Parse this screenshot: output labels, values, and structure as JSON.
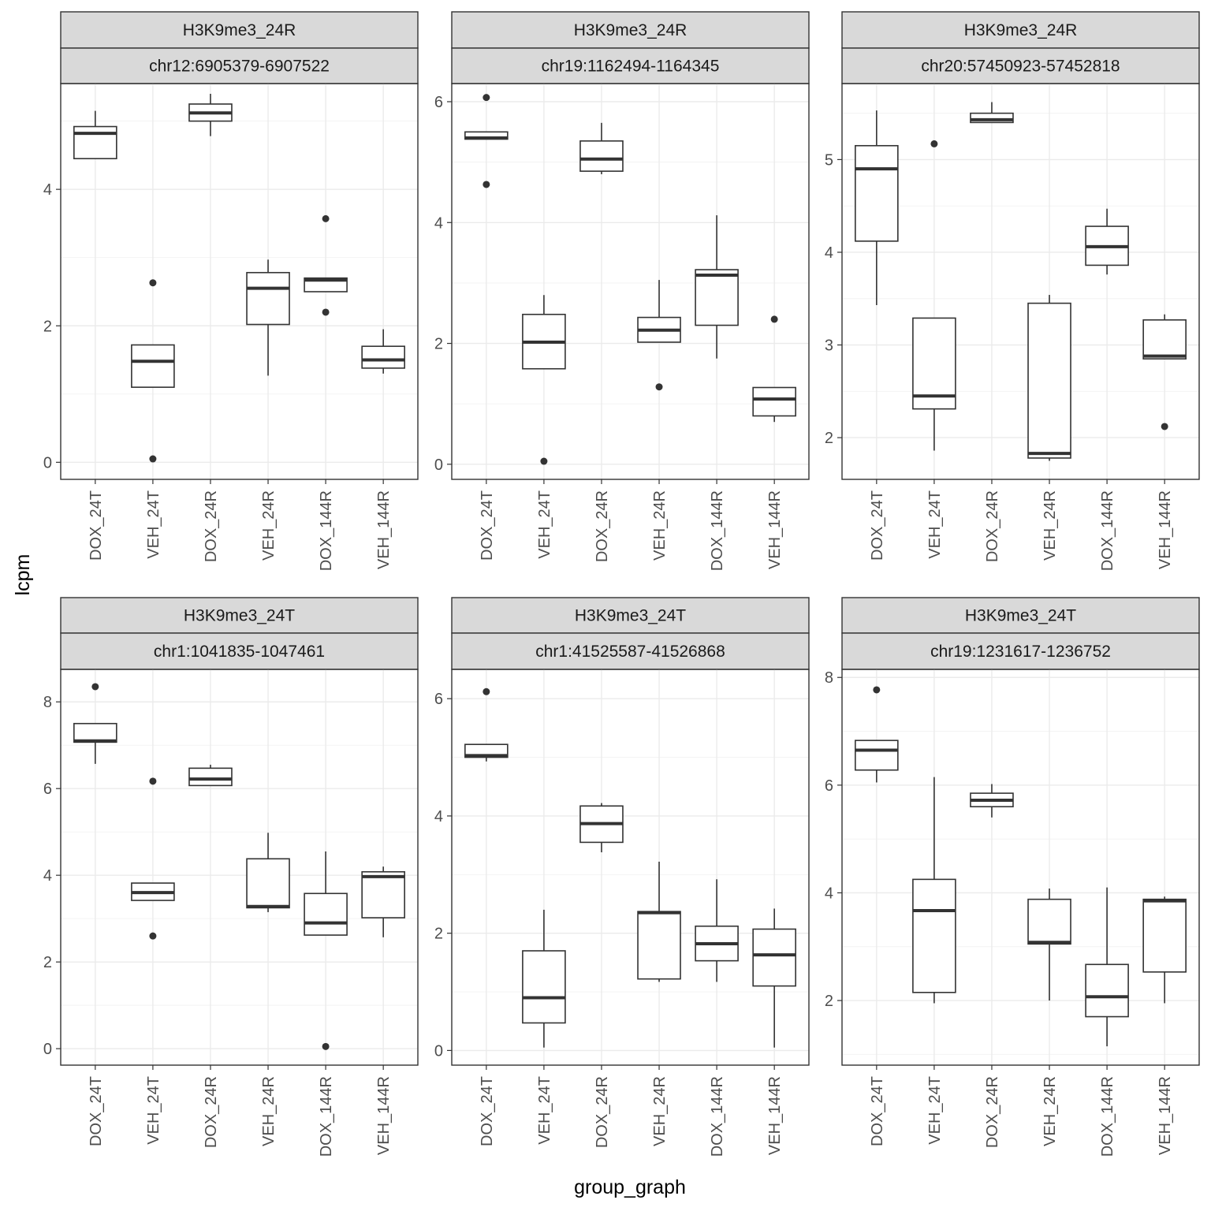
{
  "chart_data": {
    "type": "boxplot",
    "xlabel": "group_graph",
    "ylabel": "lcpm",
    "categories": [
      "DOX_24T",
      "VEH_24T",
      "DOX_24R",
      "VEH_24R",
      "DOX_144R",
      "VEH_144R"
    ],
    "panels": [
      {
        "strip_top": "H3K9me3_24R",
        "strip_bottom": "chr12:6905379-6907522",
        "ylim": [
          -0.25,
          5.55
        ],
        "yticks": [
          0,
          2,
          4
        ],
        "boxes": [
          {
            "category": "DOX_24T",
            "whisker_low": 4.45,
            "q1": 4.45,
            "median": 4.82,
            "q3": 4.92,
            "whisker_high": 5.15,
            "outliers": []
          },
          {
            "category": "VEH_24T",
            "whisker_low": 1.1,
            "q1": 1.1,
            "median": 1.48,
            "q3": 1.72,
            "whisker_high": 1.72,
            "outliers": [
              2.63,
              0.05
            ]
          },
          {
            "category": "DOX_24R",
            "whisker_low": 4.78,
            "q1": 5.0,
            "median": 5.12,
            "q3": 5.25,
            "whisker_high": 5.4,
            "outliers": []
          },
          {
            "category": "VEH_24R",
            "whisker_low": 1.27,
            "q1": 2.02,
            "median": 2.55,
            "q3": 2.78,
            "whisker_high": 2.97,
            "outliers": []
          },
          {
            "category": "DOX_144R",
            "whisker_low": 2.5,
            "q1": 2.5,
            "median": 2.67,
            "q3": 2.7,
            "whisker_high": 2.7,
            "outliers": [
              3.57,
              2.2
            ]
          },
          {
            "category": "VEH_144R",
            "whisker_low": 1.3,
            "q1": 1.38,
            "median": 1.5,
            "q3": 1.7,
            "whisker_high": 1.95,
            "outliers": []
          }
        ]
      },
      {
        "strip_top": "H3K9me3_24R",
        "strip_bottom": "chr19:1162494-1164345",
        "ylim": [
          -0.25,
          6.3
        ],
        "yticks": [
          0,
          2,
          4,
          6
        ],
        "boxes": [
          {
            "category": "DOX_24T",
            "whisker_low": 5.38,
            "q1": 5.38,
            "median": 5.4,
            "q3": 5.5,
            "whisker_high": 5.5,
            "outliers": [
              6.07,
              4.63
            ]
          },
          {
            "category": "VEH_24T",
            "whisker_low": 1.58,
            "q1": 1.58,
            "median": 2.02,
            "q3": 2.48,
            "whisker_high": 2.8,
            "outliers": [
              0.05
            ]
          },
          {
            "category": "DOX_24R",
            "whisker_low": 4.8,
            "q1": 4.85,
            "median": 5.05,
            "q3": 5.35,
            "whisker_high": 5.65,
            "outliers": []
          },
          {
            "category": "VEH_24R",
            "whisker_low": 2.02,
            "q1": 2.02,
            "median": 2.22,
            "q3": 2.43,
            "whisker_high": 3.05,
            "outliers": [
              1.28
            ]
          },
          {
            "category": "DOX_144R",
            "whisker_low": 1.75,
            "q1": 2.3,
            "median": 3.13,
            "q3": 3.22,
            "whisker_high": 4.12,
            "outliers": []
          },
          {
            "category": "VEH_144R",
            "whisker_low": 0.7,
            "q1": 0.8,
            "median": 1.08,
            "q3": 1.27,
            "whisker_high": 1.27,
            "outliers": [
              2.4
            ]
          }
        ]
      },
      {
        "strip_top": "H3K9me3_24R",
        "strip_bottom": "chr20:57450923-57452818",
        "ylim": [
          1.55,
          5.82
        ],
        "yticks": [
          2,
          3,
          4,
          5
        ],
        "boxes": [
          {
            "category": "DOX_24T",
            "whisker_low": 3.43,
            "q1": 4.12,
            "median": 4.9,
            "q3": 5.15,
            "whisker_high": 5.53,
            "outliers": []
          },
          {
            "category": "VEH_24T",
            "whisker_low": 1.86,
            "q1": 2.31,
            "median": 2.45,
            "q3": 3.29,
            "whisker_high": 3.29,
            "outliers": [
              5.17
            ]
          },
          {
            "category": "DOX_24R",
            "whisker_low": 5.4,
            "q1": 5.4,
            "median": 5.43,
            "q3": 5.5,
            "whisker_high": 5.62,
            "outliers": []
          },
          {
            "category": "VEH_24R",
            "whisker_low": 1.75,
            "q1": 1.78,
            "median": 1.83,
            "q3": 3.45,
            "whisker_high": 3.54,
            "outliers": []
          },
          {
            "category": "DOX_144R",
            "whisker_low": 3.76,
            "q1": 3.86,
            "median": 4.06,
            "q3": 4.28,
            "whisker_high": 4.47,
            "outliers": []
          },
          {
            "category": "VEH_144R",
            "whisker_low": 2.85,
            "q1": 2.85,
            "median": 2.88,
            "q3": 3.27,
            "whisker_high": 3.33,
            "outliers": [
              2.12
            ]
          }
        ]
      },
      {
        "strip_top": "H3K9me3_24T",
        "strip_bottom": "chr1:1041835-1047461",
        "ylim": [
          -0.38,
          8.75
        ],
        "yticks": [
          0,
          2,
          4,
          6,
          8
        ],
        "boxes": [
          {
            "category": "DOX_24T",
            "whisker_low": 6.57,
            "q1": 7.07,
            "median": 7.1,
            "q3": 7.5,
            "whisker_high": 7.5,
            "outliers": [
              8.35
            ]
          },
          {
            "category": "VEH_24T",
            "whisker_low": 3.42,
            "q1": 3.42,
            "median": 3.6,
            "q3": 3.82,
            "whisker_high": 3.82,
            "outliers": [
              6.17,
              2.6
            ]
          },
          {
            "category": "DOX_24R",
            "whisker_low": 6.07,
            "q1": 6.07,
            "median": 6.22,
            "q3": 6.47,
            "whisker_high": 6.55,
            "outliers": []
          },
          {
            "category": "VEH_24R",
            "whisker_low": 3.15,
            "q1": 3.25,
            "median": 3.28,
            "q3": 4.38,
            "whisker_high": 4.98,
            "outliers": []
          },
          {
            "category": "DOX_144R",
            "whisker_low": 2.62,
            "q1": 2.62,
            "median": 2.9,
            "q3": 3.58,
            "whisker_high": 4.55,
            "outliers": [
              0.05
            ]
          },
          {
            "category": "VEH_144R",
            "whisker_low": 2.57,
            "q1": 3.02,
            "median": 3.97,
            "q3": 4.08,
            "whisker_high": 4.2,
            "outliers": []
          }
        ]
      },
      {
        "strip_top": "H3K9me3_24T",
        "strip_bottom": "chr1:41525587-41526868",
        "ylim": [
          -0.25,
          6.5
        ],
        "yticks": [
          0,
          2,
          4,
          6
        ],
        "boxes": [
          {
            "category": "DOX_24T",
            "whisker_low": 4.93,
            "q1": 5.0,
            "median": 5.03,
            "q3": 5.22,
            "whisker_high": 5.22,
            "outliers": [
              6.12
            ]
          },
          {
            "category": "VEH_24T",
            "whisker_low": 0.05,
            "q1": 0.47,
            "median": 0.9,
            "q3": 1.7,
            "whisker_high": 2.4,
            "outliers": []
          },
          {
            "category": "DOX_24R",
            "whisker_low": 3.38,
            "q1": 3.55,
            "median": 3.87,
            "q3": 4.17,
            "whisker_high": 4.22,
            "outliers": []
          },
          {
            "category": "VEH_24R",
            "whisker_low": 1.17,
            "q1": 1.22,
            "median": 2.35,
            "q3": 2.37,
            "whisker_high": 3.22,
            "outliers": []
          },
          {
            "category": "DOX_144R",
            "whisker_low": 1.17,
            "q1": 1.53,
            "median": 1.82,
            "q3": 2.12,
            "whisker_high": 2.92,
            "outliers": []
          },
          {
            "category": "VEH_144R",
            "whisker_low": 0.05,
            "q1": 1.1,
            "median": 1.63,
            "q3": 2.07,
            "whisker_high": 2.42,
            "outliers": []
          }
        ]
      },
      {
        "strip_top": "H3K9me3_24T",
        "strip_bottom": "chr19:1231617-1236752",
        "ylim": [
          0.8,
          8.15
        ],
        "yticks": [
          2,
          4,
          6,
          8
        ],
        "boxes": [
          {
            "category": "DOX_24T",
            "whisker_low": 6.05,
            "q1": 6.28,
            "median": 6.65,
            "q3": 6.83,
            "whisker_high": 6.83,
            "outliers": [
              7.77
            ]
          },
          {
            "category": "VEH_24T",
            "whisker_low": 1.95,
            "q1": 2.15,
            "median": 3.67,
            "q3": 4.25,
            "whisker_high": 6.15,
            "outliers": []
          },
          {
            "category": "DOX_24R",
            "whisker_low": 5.4,
            "q1": 5.6,
            "median": 5.72,
            "q3": 5.85,
            "whisker_high": 6.02,
            "outliers": []
          },
          {
            "category": "VEH_24R",
            "whisker_low": 2.0,
            "q1": 3.05,
            "median": 3.08,
            "q3": 3.88,
            "whisker_high": 4.08,
            "outliers": []
          },
          {
            "category": "DOX_144R",
            "whisker_low": 1.15,
            "q1": 1.7,
            "median": 2.07,
            "q3": 2.67,
            "whisker_high": 4.1,
            "outliers": []
          },
          {
            "category": "VEH_144R",
            "whisker_low": 1.95,
            "q1": 2.53,
            "median": 3.85,
            "q3": 3.88,
            "whisker_high": 3.93,
            "outliers": []
          }
        ]
      }
    ]
  }
}
